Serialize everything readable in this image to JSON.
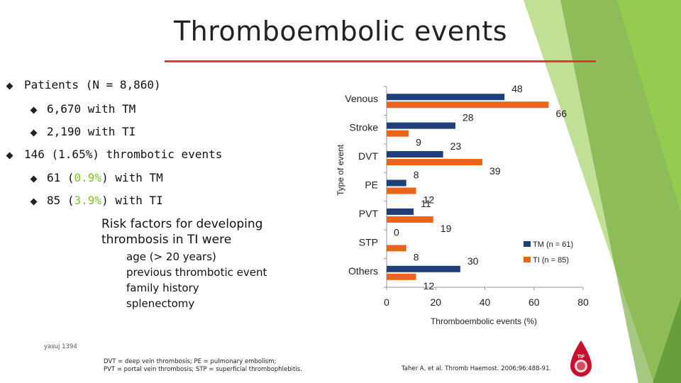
{
  "slide": {
    "title": "Thromboembolic events",
    "bullets": {
      "patients": "Patients (N = 8,860)",
      "tm": "6,670 with TM",
      "ti": "2,190 with TI",
      "events": "146 (1.65%) thrombotic events",
      "tm_events_prefix": "61 (",
      "tm_events_pct": "0.9%",
      "tm_events_suffix": ") with TM",
      "ti_events_prefix": "85 (",
      "ti_events_pct": "3.9%",
      "ti_events_suffix": ") with TI"
    },
    "risk_factors": {
      "heading_line1": "Risk factors for developing",
      "heading_line2": "thrombosis in TI were",
      "items": [
        "age (> 20 years)",
        "previous thrombotic event",
        "family history",
        "splenectomy"
      ]
    },
    "watermark": "yasuj 1394",
    "abbreviations_line1": "DVT = deep vein thrombosis; PE = pulmonary embolism;",
    "abbreviations_line2": "PVT = portal vein thrombosis; STP = superficial thrombophlebitis.",
    "citation": "Taher A, et al. Thromb Haemost. 2006;96:488-91.",
    "logo_text": "TIF"
  },
  "colors": {
    "accent_green": "#7dc229",
    "rule_red": "#e03c31",
    "tm_series": "#1f3f78",
    "ti_series": "#e8651a",
    "logo_red": "#c8102e"
  },
  "chart_data": {
    "type": "bar",
    "orientation": "horizontal",
    "categories": [
      "Venous",
      "Stroke",
      "DVT",
      "PE",
      "PVT",
      "STP",
      "Others"
    ],
    "series": [
      {
        "name": "TM (n = 61)",
        "values": [
          48,
          28,
          23,
          8,
          11,
          0,
          30
        ]
      },
      {
        "name": "TI (n = 85)",
        "values": [
          66,
          9,
          39,
          12,
          19,
          8,
          12
        ]
      }
    ],
    "xlabel": "Thromboembolic events (%)",
    "ylabel": "Type of event",
    "xlim": [
      0,
      80
    ],
    "xticks": [
      0,
      20,
      40,
      60,
      80
    ],
    "legend": "right"
  }
}
